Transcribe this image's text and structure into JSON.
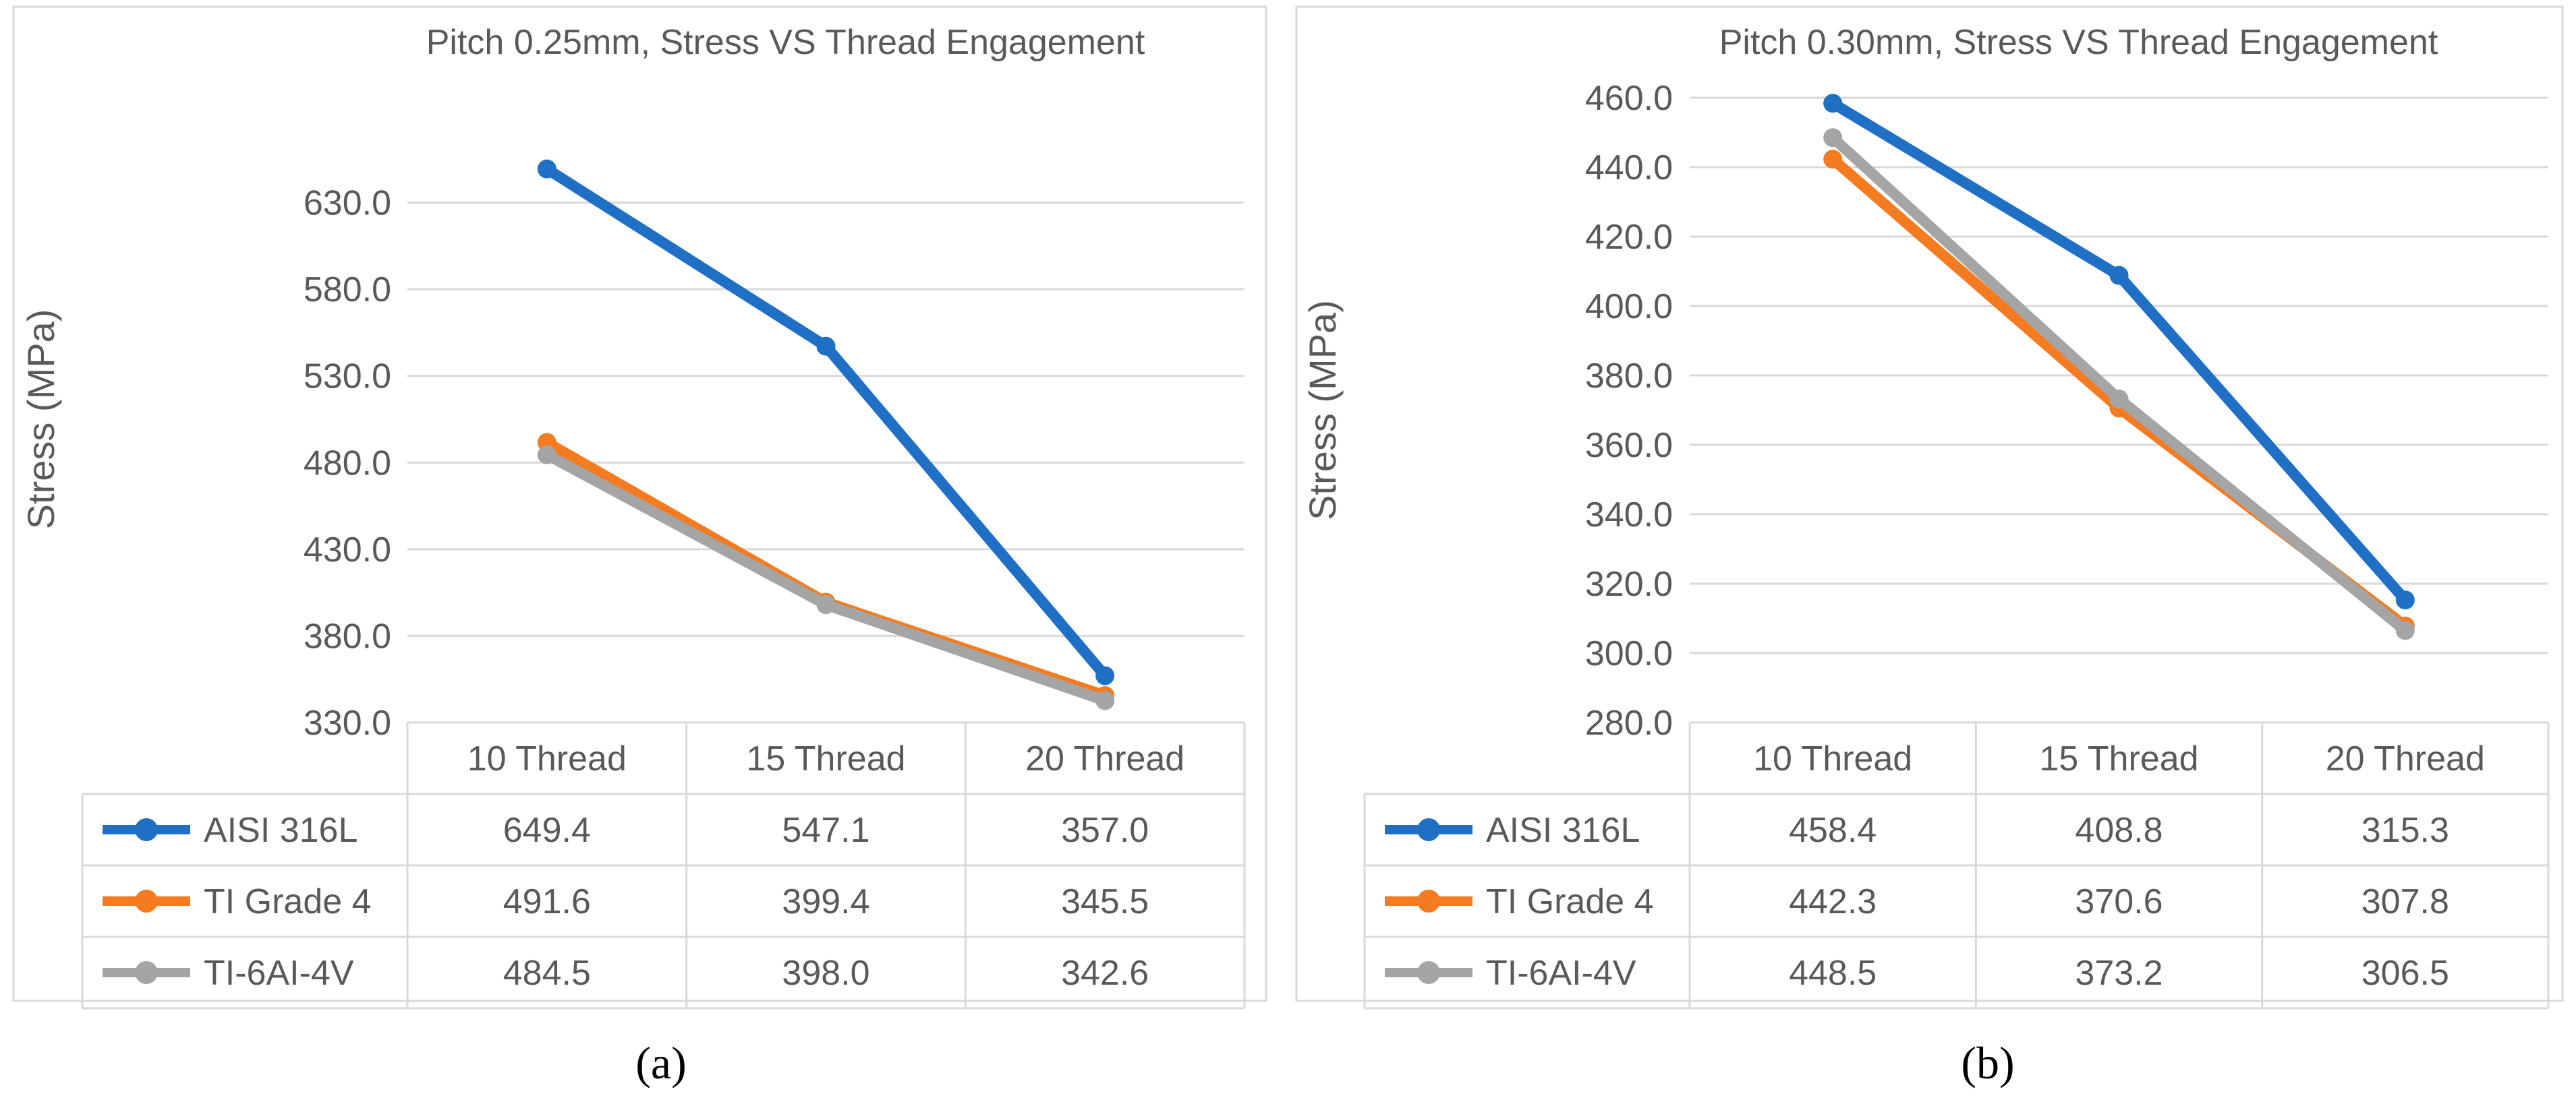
{
  "chart_data": [
    {
      "type": "line",
      "title": "Pitch 0.25mm, Stress VS Thread Engagement",
      "xlabel": "",
      "ylabel": "Stress (MPa)",
      "ylim": [
        330,
        680
      ],
      "yticks": [
        "330.0",
        "380.0",
        "430.0",
        "480.0",
        "530.0",
        "580.0",
        "630.0"
      ],
      "categories": [
        "10 Thread",
        "15 Thread",
        "20 Thread"
      ],
      "data_table": true,
      "series": [
        {
          "name": "AISI 316L",
          "color": "#1f6fc5",
          "values": [
            649.4,
            547.1,
            357.0
          ],
          "labels": [
            "649.4",
            "547.1",
            "357.0"
          ]
        },
        {
          "name": "TI Grade 4",
          "color": "#f47b20",
          "values": [
            491.6,
            399.4,
            345.5
          ],
          "labels": [
            "491.6",
            "399.4",
            "345.5"
          ]
        },
        {
          "name": "TI-6AI-4V",
          "color": "#a5a5a5",
          "values": [
            484.5,
            398.0,
            342.6
          ],
          "labels": [
            "484.5",
            "398.0",
            "342.6"
          ]
        }
      ],
      "caption": "a"
    },
    {
      "type": "line",
      "title": "Pitch 0.30mm, Stress VS Thread Engagement",
      "xlabel": "",
      "ylabel": "Stress (MPa)",
      "ylim": [
        280,
        460
      ],
      "yticks": [
        "280.0",
        "300.0",
        "320.0",
        "340.0",
        "360.0",
        "380.0",
        "400.0",
        "420.0",
        "440.0",
        "460.0"
      ],
      "categories": [
        "10 Thread",
        "15 Thread",
        "20 Thread"
      ],
      "data_table": true,
      "series": [
        {
          "name": "AISI 316L",
          "color": "#1f6fc5",
          "values": [
            458.4,
            408.8,
            315.3
          ],
          "labels": [
            "458.4",
            "408.8",
            "315.3"
          ]
        },
        {
          "name": "TI Grade 4",
          "color": "#f47b20",
          "values": [
            442.3,
            370.6,
            307.8
          ],
          "labels": [
            "442.3",
            "370.6",
            "307.8"
          ]
        },
        {
          "name": "TI-6AI-4V",
          "color": "#a5a5a5",
          "values": [
            448.5,
            373.2,
            306.5
          ],
          "labels": [
            "448.5",
            "373.2",
            "306.5"
          ]
        }
      ],
      "caption": "b"
    }
  ]
}
